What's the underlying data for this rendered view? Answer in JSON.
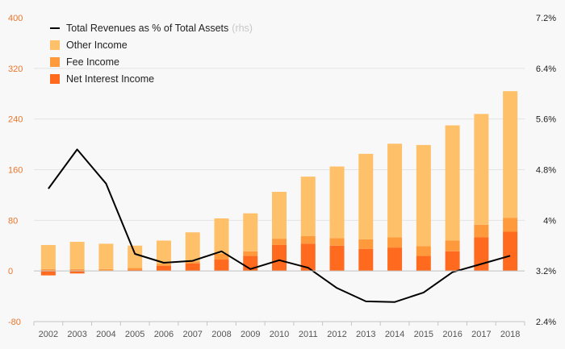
{
  "chart_data": {
    "type": "bar",
    "stacked": true,
    "categories": [
      "2002",
      "2003",
      "2004",
      "2005",
      "2006",
      "2007",
      "2008",
      "2009",
      "2010",
      "2011",
      "2012",
      "2013",
      "2014",
      "2015",
      "2016",
      "2017",
      "2018"
    ],
    "left_axis": {
      "ylim": [
        -80,
        400
      ],
      "ticks": [
        "-80",
        "0",
        "80",
        "160",
        "240",
        "320",
        "400"
      ],
      "tick_color": "#e8762b"
    },
    "right_axis": {
      "ylim": [
        2.4,
        7.2
      ],
      "ticks": [
        "2.4%",
        "3.2%",
        "4%",
        "4.8%",
        "5.6%",
        "6.4%",
        "7.2%"
      ]
    },
    "series": [
      {
        "name": "Net Interest Income",
        "color": "#ff6a1e",
        "values": [
          -7,
          -4,
          0,
          2,
          8,
          12,
          18,
          24,
          41,
          43,
          40,
          35,
          37,
          24,
          31,
          53,
          62
        ]
      },
      {
        "name": "Fee Income",
        "color": "#ff9a3c",
        "values": [
          3,
          3,
          3,
          3,
          3,
          3,
          9,
          7,
          10,
          12,
          12,
          15,
          16,
          15,
          17,
          20,
          22
        ]
      },
      {
        "name": "Other Income",
        "color": "#ffc06a",
        "values": [
          38,
          43,
          40,
          35,
          37,
          46,
          56,
          60,
          74,
          94,
          113,
          135,
          148,
          160,
          182,
          175,
          200
        ]
      },
      {
        "name": "Total Revenues as % of Total Assets",
        "name_suffix": "(rhs)",
        "type": "line",
        "axis": "right",
        "color": "#000000",
        "values": [
          4.5,
          5.12,
          4.58,
          3.47,
          3.33,
          3.36,
          3.51,
          3.23,
          3.37,
          3.25,
          2.93,
          2.72,
          2.71,
          2.86,
          3.18,
          3.31,
          3.44
        ]
      }
    ],
    "legend": {
      "placement": "top-left",
      "order": [
        3,
        2,
        1,
        0
      ]
    },
    "grid": true
  }
}
